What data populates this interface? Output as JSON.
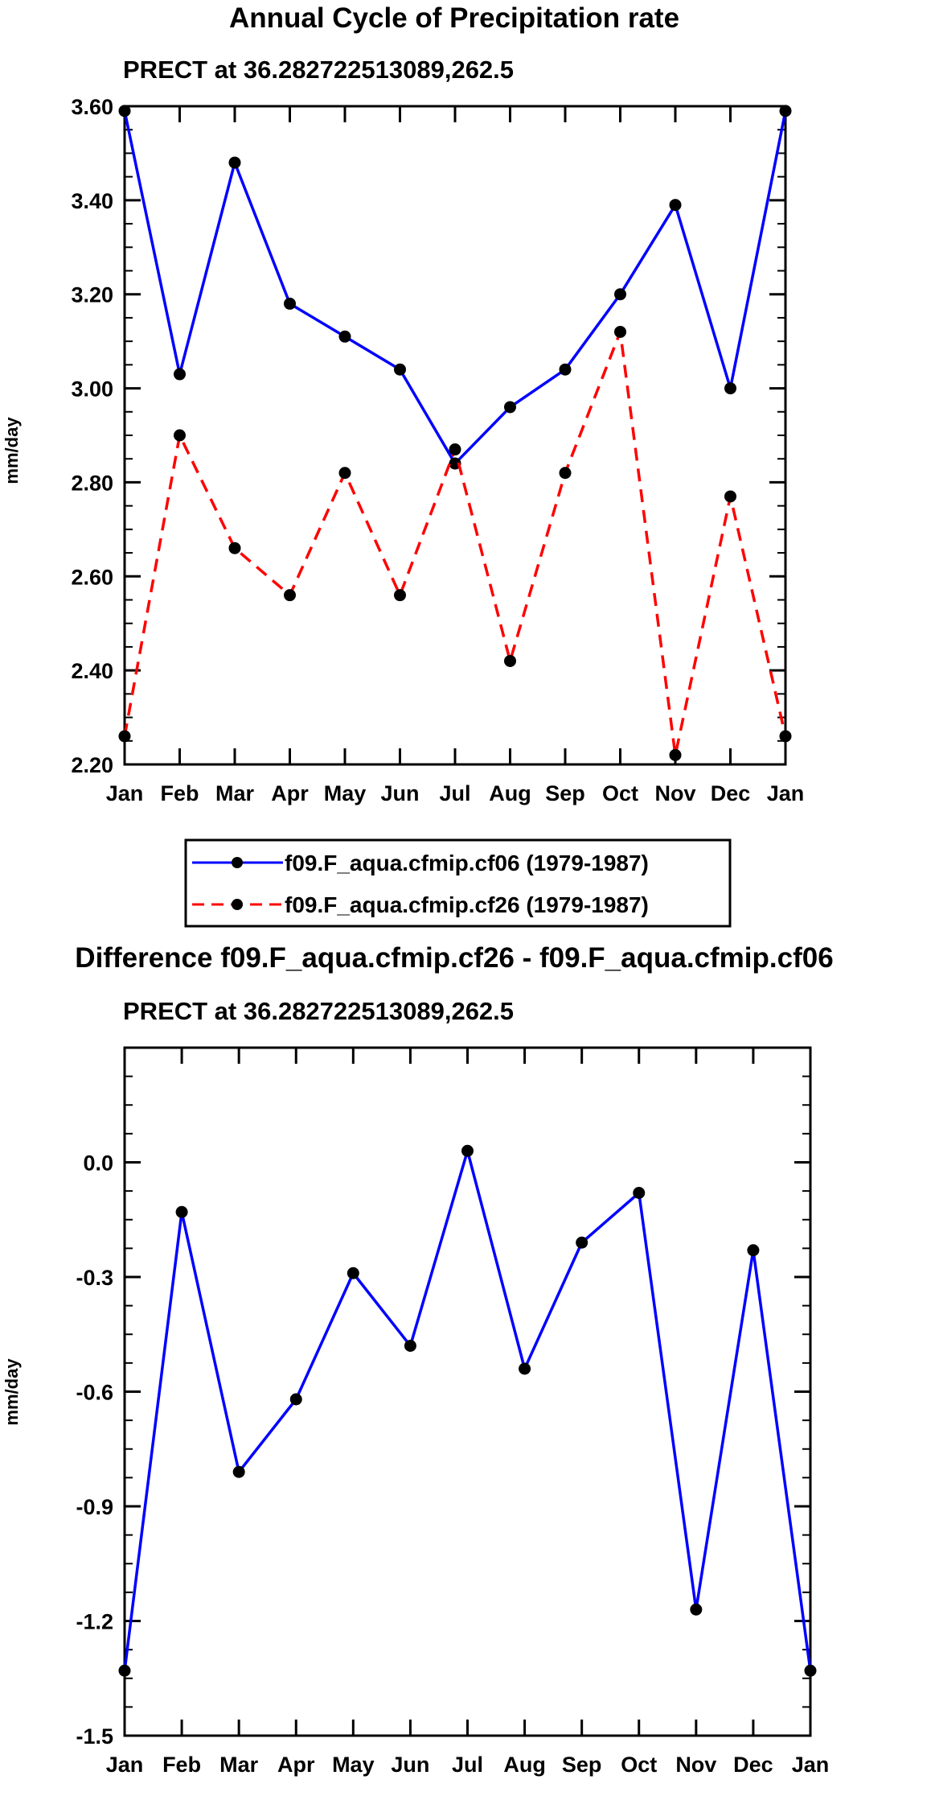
{
  "colors": {
    "series1": "#0000ff",
    "series2": "#ff0000",
    "marker": "#000000",
    "axis": "#000000"
  },
  "chart_data": [
    {
      "type": "line",
      "title": "Annual Cycle of Precipitation rate",
      "subtitle": "PRECT at 36.282722513089,262.5",
      "ylabel": "mm/day",
      "ylim": [
        2.2,
        3.6
      ],
      "yticks": [
        "2.20",
        "2.40",
        "2.60",
        "2.80",
        "3.00",
        "3.20",
        "3.40",
        "3.60"
      ],
      "ytick_values": [
        2.2,
        2.4,
        2.6,
        2.8,
        3.0,
        3.2,
        3.4,
        3.6
      ],
      "categories": [
        "Jan",
        "Feb",
        "Mar",
        "Apr",
        "May",
        "Jun",
        "Jul",
        "Aug",
        "Sep",
        "Oct",
        "Nov",
        "Dec",
        "Jan"
      ],
      "series": [
        {
          "name": "f09.F_aqua.cfmip.cf06 (1979-1987)",
          "style": "solid",
          "values": [
            3.59,
            3.03,
            3.48,
            3.18,
            3.11,
            3.04,
            2.84,
            2.96,
            3.04,
            3.2,
            3.39,
            3.0,
            3.59
          ]
        },
        {
          "name": "f09.F_aqua.cfmip.cf26 (1979-1987)",
          "style": "dashed",
          "values": [
            2.26,
            2.9,
            2.66,
            2.56,
            2.82,
            2.56,
            2.87,
            2.42,
            2.82,
            3.12,
            2.22,
            2.77,
            2.26
          ]
        }
      ],
      "legend": [
        "f09.F_aqua.cfmip.cf06 (1979-1987)",
        "f09.F_aqua.cfmip.cf26 (1979-1987)"
      ]
    },
    {
      "type": "line",
      "title": "Difference f09.F_aqua.cfmip.cf26 - f09.F_aqua.cfmip.cf06",
      "subtitle": "PRECT at 36.282722513089,262.5",
      "ylabel": "mm/day",
      "ylim": [
        -1.5,
        0.3
      ],
      "yticks": [
        "-1.5",
        "-1.2",
        "-0.9",
        "-0.6",
        "-0.3",
        "0.0"
      ],
      "ytick_values": [
        -1.5,
        -1.2,
        -0.9,
        -0.6,
        -0.3,
        0.0
      ],
      "categories": [
        "Jan",
        "Feb",
        "Mar",
        "Apr",
        "May",
        "Jun",
        "Jul",
        "Aug",
        "Sep",
        "Oct",
        "Nov",
        "Dec",
        "Jan"
      ],
      "series": [
        {
          "name": "Difference",
          "style": "solid",
          "values": [
            -1.33,
            -0.13,
            -0.81,
            -0.62,
            -0.29,
            -0.48,
            0.03,
            -0.54,
            -0.21,
            -0.08,
            -1.17,
            -0.23,
            -1.33
          ]
        }
      ]
    }
  ]
}
